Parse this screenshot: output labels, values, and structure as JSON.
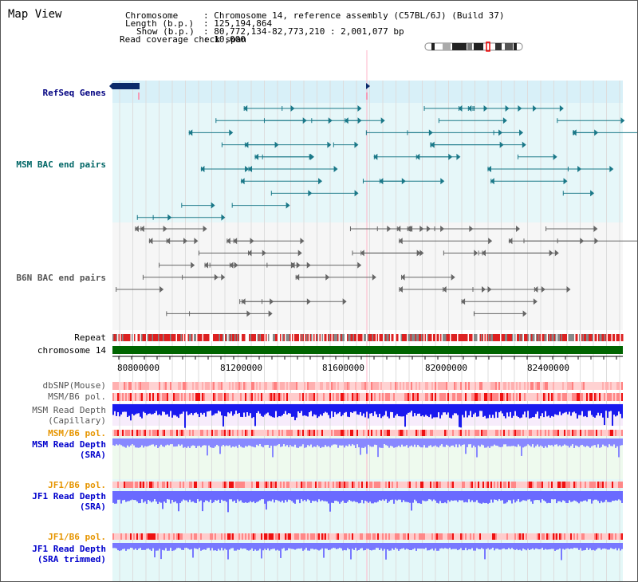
{
  "title": "Map View",
  "header": {
    "chromosome_label": "Chromosome",
    "chromosome_value": ": Chromosome 14, reference assembly (C57BL/6J) (Build 37)",
    "length_label": "Length (b.p.)",
    "length_value": ": 125,194,864",
    "show_label": "Show (b.p.)",
    "show_value": ": 80,772,134-82,773,210 : 2,001,077 bp",
    "coverage_label": "Read coverage check span",
    "coverage_value": ": 10,000"
  },
  "tracks": {
    "refseq": "RefSeq Genes",
    "msm_bac": "MSM BAC end pairs",
    "b6n_bac": "B6N BAC end pairs",
    "repeat": "Repeat",
    "chromosome": "chromosome 14",
    "dbsnp": "dbSNP(Mouse)",
    "msm_b6_pol_1": "MSM/B6 pol.",
    "msm_depth_cap_1": "MSM Read Depth",
    "msm_depth_cap_2": "(Capillary)",
    "msm_b6_pol_2": "MSM/B6 pol.",
    "msm_depth_sra_1": "MSM Read Depth",
    "msm_depth_sra_2": "(SRA)",
    "jf1_b6_pol_1": "JF1/B6 pol.",
    "jf1_depth_sra_1": "JF1 Read Depth",
    "jf1_depth_sra_2": "(SRA)",
    "jf1_b6_pol_2": "JF1/B6 pol.",
    "jf1_depth_trim_1": "JF1 Read Depth",
    "jf1_depth_trim_2": "(SRA trimmed)"
  },
  "axis_ticks": [
    "80800000",
    "81200000",
    "81600000",
    "82000000",
    "82400000"
  ],
  "colors": {
    "label_navy": "#000080",
    "label_teal": "#006666",
    "label_orange": "#e69500",
    "label_blue": "#0000cc",
    "chromosome_bar": "#006400",
    "refseq_bg": "#d8f0f8",
    "msm_bg": "#e6f7f9",
    "b6n_bg": "#f6f6f6"
  }
}
